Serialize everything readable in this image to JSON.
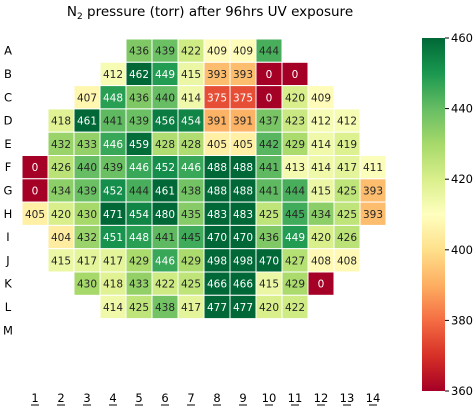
{
  "chart_data": {
    "type": "heatmap",
    "title_main": "N",
    "title_sub": "2",
    "title_rest": " pressure (torr) after 96hrs UV exposure",
    "rows": [
      "A",
      "B",
      "C",
      "D",
      "E",
      "F",
      "G",
      "H",
      "I",
      "J",
      "K",
      "L",
      "M"
    ],
    "columns": [
      "1",
      "2",
      "3",
      "4",
      "5",
      "6",
      "7",
      "8",
      "9",
      "10",
      "11",
      "12",
      "13",
      "14"
    ],
    "values": [
      [
        null,
        null,
        null,
        null,
        436,
        439,
        422,
        409,
        409,
        444,
        null,
        null,
        null,
        null
      ],
      [
        null,
        null,
        null,
        412,
        462,
        449,
        415,
        393,
        393,
        0,
        0,
        null,
        null,
        null
      ],
      [
        null,
        null,
        407,
        448,
        436,
        440,
        414,
        375,
        375,
        0,
        420,
        409,
        null,
        null
      ],
      [
        null,
        418,
        461,
        441,
        439,
        456,
        454,
        391,
        391,
        437,
        423,
        412,
        412,
        null
      ],
      [
        null,
        432,
        433,
        446,
        459,
        428,
        428,
        405,
        405,
        442,
        429,
        414,
        419,
        null
      ],
      [
        0,
        426,
        440,
        439,
        446,
        452,
        446,
        488,
        488,
        441,
        413,
        414,
        417,
        411
      ],
      [
        0,
        434,
        439,
        452,
        444,
        461,
        438,
        488,
        488,
        441,
        444,
        415,
        425,
        393
      ],
      [
        405,
        420,
        430,
        471,
        454,
        480,
        435,
        483,
        483,
        425,
        445,
        434,
        425,
        393
      ],
      [
        null,
        404,
        432,
        451,
        448,
        441,
        445,
        470,
        470,
        436,
        449,
        420,
        426,
        null
      ],
      [
        null,
        415,
        417,
        417,
        429,
        446,
        429,
        498,
        498,
        470,
        427,
        408,
        408,
        null
      ],
      [
        null,
        null,
        430,
        418,
        433,
        422,
        425,
        466,
        466,
        415,
        429,
        0,
        null,
        null
      ],
      [
        null,
        null,
        null,
        414,
        425,
        438,
        417,
        477,
        477,
        420,
        422,
        null,
        null,
        null
      ],
      [
        null,
        null,
        null,
        null,
        null,
        null,
        null,
        null,
        null,
        null,
        null,
        null,
        null,
        null
      ]
    ],
    "colorbar": {
      "min": 360,
      "max": 460,
      "ticks": [
        360,
        380,
        400,
        420,
        440,
        460
      ],
      "colormap": "RdYlGn"
    },
    "grid": false,
    "legend": "colorbar-right"
  }
}
